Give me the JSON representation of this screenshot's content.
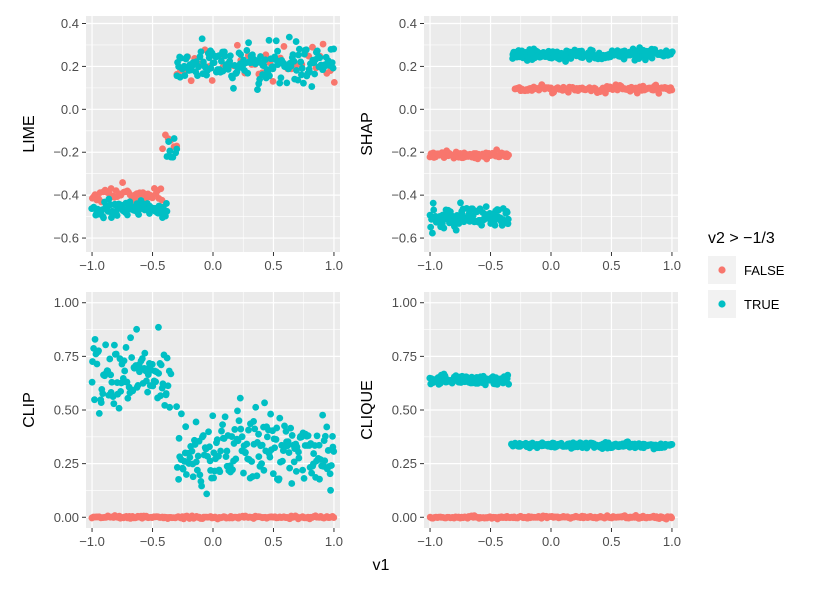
{
  "colors": {
    "false": "#F8766D",
    "true": "#00BFC4",
    "panel_bg": "#EBEBEB",
    "grid": "#FFFFFF"
  },
  "xlabel": "v1",
  "legend": {
    "title": "v2 > −1/3",
    "entries": [
      {
        "label": "FALSE",
        "color": "#F8766D"
      },
      {
        "label": "TRUE",
        "color": "#00BFC4"
      }
    ]
  },
  "chart_data": [
    {
      "type": "scatter",
      "ylabel": "LIME",
      "xlim": [
        -1.05,
        1.05
      ],
      "ylim": [
        -0.665,
        0.435
      ],
      "xticks": [
        -1.0,
        -0.5,
        0.0,
        0.5,
        1.0
      ],
      "xtick_labels": [
        "−1.0",
        "−0.5",
        "0.0",
        "0.5",
        "1.0"
      ],
      "yticks": [
        -0.6,
        -0.4,
        -0.2,
        0.0,
        0.2,
        0.4
      ],
      "ytick_labels": [
        "−0.6",
        "−0.4",
        "−0.2",
        "0.0",
        "0.2",
        "0.4"
      ],
      "series": [
        {
          "name": "FALSE",
          "segments": [
            {
              "x": [
                -1.0,
                -0.42
              ],
              "y": -0.395,
              "jitter": 0.018,
              "n": 45
            },
            {
              "x": [
                -0.42,
                -0.3
              ],
              "y": -0.16,
              "jitter": 0.045,
              "n": 6
            },
            {
              "x": [
                -0.3,
                1.0
              ],
              "y": 0.2,
              "jitter": 0.04,
              "n": 45
            }
          ]
        },
        {
          "name": "TRUE",
          "segments": [
            {
              "x": [
                -1.0,
                -0.38
              ],
              "y": -0.465,
              "jitter": 0.022,
              "n": 85
            },
            {
              "x": [
                -0.38,
                -0.3
              ],
              "y": -0.19,
              "jitter": 0.03,
              "n": 8
            },
            {
              "x": [
                -0.3,
                1.0
              ],
              "y": 0.21,
              "jitter": 0.045,
              "n": 170
            }
          ]
        }
      ]
    },
    {
      "type": "scatter",
      "ylabel": "SHAP",
      "xlim": [
        -1.05,
        1.05
      ],
      "ylim": [
        -0.665,
        0.435
      ],
      "xticks": [
        -1.0,
        -0.5,
        0.0,
        0.5,
        1.0
      ],
      "xtick_labels": [
        "−1.0",
        "−0.5",
        "0.0",
        "0.5",
        "1.0"
      ],
      "yticks": [
        -0.6,
        -0.4,
        -0.2,
        0.0,
        0.2,
        0.4
      ],
      "ytick_labels": [
        "−0.6",
        "−0.4",
        "−0.2",
        "0.0",
        "0.2",
        "0.4"
      ],
      "series": [
        {
          "name": "FALSE",
          "segments": [
            {
              "x": [
                -1.0,
                -0.35
              ],
              "y": -0.215,
              "jitter": 0.008,
              "n": 80
            },
            {
              "x": [
                -0.3,
                1.0
              ],
              "y": 0.095,
              "jitter": 0.008,
              "n": 110
            }
          ]
        },
        {
          "name": "TRUE",
          "segments": [
            {
              "x": [
                -1.0,
                -0.35
              ],
              "y": -0.51,
              "jitter": 0.025,
              "n": 110
            },
            {
              "x": [
                -0.32,
                1.0
              ],
              "y": 0.255,
              "jitter": 0.012,
              "n": 180
            }
          ]
        }
      ]
    },
    {
      "type": "scatter",
      "ylabel": "CLIP",
      "xlim": [
        -1.05,
        1.05
      ],
      "ylim": [
        -0.05,
        1.05
      ],
      "xticks": [
        -1.0,
        -0.5,
        0.0,
        0.5,
        1.0
      ],
      "xtick_labels": [
        "−1.0",
        "−0.5",
        "0.0",
        "0.5",
        "1.0"
      ],
      "yticks": [
        0.0,
        0.25,
        0.5,
        0.75,
        1.0
      ],
      "ytick_labels": [
        "0.00",
        "0.25",
        "0.50",
        "0.75",
        "1.00"
      ],
      "series": [
        {
          "name": "FALSE",
          "segments": [
            {
              "x": [
                -1.0,
                1.0
              ],
              "y": 0.0,
              "jitter": 0.003,
              "n": 170
            }
          ]
        },
        {
          "name": "TRUE",
          "segments": [
            {
              "x": [
                -1.0,
                -0.35
              ],
              "y": 0.66,
              "jitter": 0.09,
              "n": 95
            },
            {
              "x": [
                -0.3,
                1.0
              ],
              "y": 0.32,
              "jitter": 0.09,
              "n": 190
            }
          ]
        }
      ]
    },
    {
      "type": "scatter",
      "ylabel": "CLIQUE",
      "xlim": [
        -1.05,
        1.05
      ],
      "ylim": [
        -0.05,
        1.05
      ],
      "xticks": [
        -1.0,
        -0.5,
        0.0,
        0.5,
        1.0
      ],
      "xtick_labels": [
        "−1.0",
        "−0.5",
        "0.0",
        "0.5",
        "1.0"
      ],
      "yticks": [
        0.0,
        0.25,
        0.5,
        0.75,
        1.0
      ],
      "ytick_labels": [
        "0.00",
        "0.25",
        "0.50",
        "0.75",
        "1.00"
      ],
      "series": [
        {
          "name": "FALSE",
          "segments": [
            {
              "x": [
                -1.0,
                1.0
              ],
              "y": 0.0,
              "jitter": 0.003,
              "n": 170
            }
          ]
        },
        {
          "name": "TRUE",
          "segments": [
            {
              "x": [
                -1.0,
                -0.35
              ],
              "y": 0.64,
              "jitter": 0.012,
              "n": 90
            },
            {
              "x": [
                -0.33,
                1.0
              ],
              "y": 0.335,
              "jitter": 0.006,
              "n": 190
            }
          ]
        }
      ]
    }
  ]
}
